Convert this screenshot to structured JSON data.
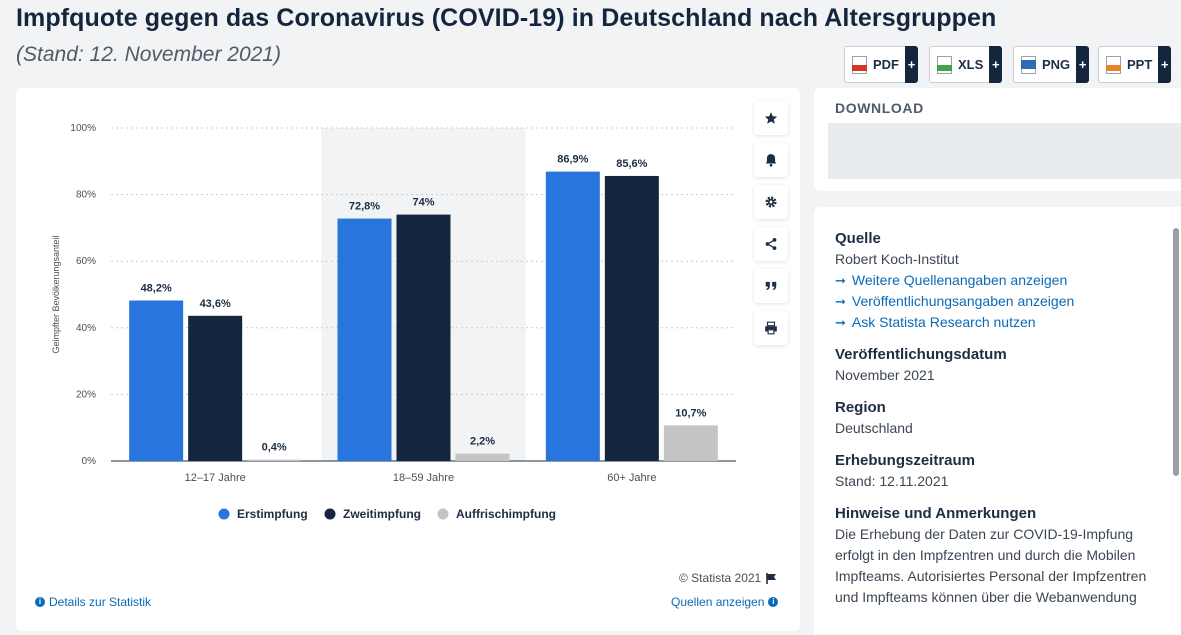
{
  "page": {
    "title": "Impfquote gegen das Coronavirus (COVID-19) in Deutschland nach Altersgruppen",
    "subtitle": "(Stand: 12. November 2021)"
  },
  "chart_data": {
    "type": "bar",
    "title": "Impfquote gegen das Coronavirus (COVID-19) in Deutschland nach Altersgruppen",
    "ylabel": "Geimpfter Bevölkerungsanteil",
    "xlabel": "",
    "ylim": [
      0,
      100
    ],
    "yticks": [
      0,
      20,
      40,
      60,
      80,
      100
    ],
    "ytick_labels": [
      "0%",
      "20%",
      "40%",
      "60%",
      "80%",
      "100%"
    ],
    "categories": [
      "12–17 Jahre",
      "18–59 Jahre",
      "60+ Jahre"
    ],
    "series": [
      {
        "name": "Erstimpfung",
        "color": "#2876dd",
        "values": [
          48.2,
          72.8,
          86.9
        ],
        "labels": [
          "48,2%",
          "72,8%",
          "86,9%"
        ]
      },
      {
        "name": "Zweitimpfung",
        "color": "#14263d",
        "values": [
          43.6,
          74,
          85.6
        ],
        "labels": [
          "43,6%",
          "74%",
          "85,6%"
        ]
      },
      {
        "name": "Auffrischimpfung",
        "color": "#c4c4c4",
        "values": [
          0.4,
          2.2,
          10.7
        ],
        "labels": [
          "0,4%",
          "2,2%",
          "10,7%"
        ]
      }
    ],
    "grid": true,
    "legend": "bottom",
    "highlight_category": "18–59 Jahre"
  },
  "chart_footer": {
    "copyright": "© Statista 2021",
    "details_link": "Details zur Statistik",
    "sources_link": "Quellen anzeigen"
  },
  "toolbar": [
    {
      "name": "favorite",
      "icon": "star-icon"
    },
    {
      "name": "notification",
      "icon": "bell-icon"
    },
    {
      "name": "settings",
      "icon": "gear-icon"
    },
    {
      "name": "share",
      "icon": "share-icon"
    },
    {
      "name": "cite",
      "icon": "quote-icon"
    },
    {
      "name": "print",
      "icon": "print-icon"
    }
  ],
  "download": {
    "title": "DOWNLOAD",
    "buttons": [
      {
        "label": "PDF",
        "plus": "+",
        "color": "#d9342b"
      },
      {
        "label": "XLS",
        "plus": "+",
        "color": "#3fa34d"
      },
      {
        "label": "PNG",
        "plus": "+",
        "color": "#2f6cb3"
      },
      {
        "label": "PPT",
        "plus": "+",
        "color": "#e8822a"
      }
    ]
  },
  "info": {
    "source_heading": "Quelle",
    "source_value": "Robert Koch-Institut",
    "links": [
      "Weitere Quellenangaben anzeigen",
      "Veröffentlichungsangaben anzeigen",
      "Ask Statista Research nutzen"
    ],
    "pubdate_heading": "Veröffentlichungsdatum",
    "pubdate_value": "November 2021",
    "region_heading": "Region",
    "region_value": "Deutschland",
    "period_heading": "Erhebungszeitraum",
    "period_value": "Stand: 12.11.2021",
    "notes_heading": "Hinweise und Anmerkungen",
    "notes_text": "Die Erhebung der Daten zur COVID-19-Impfung erfolgt in den Impfzentren und durch die Mobilen Impfteams. Autorisiertes Personal der Impfzentren und Impfteams können über die Webanwendung"
  }
}
